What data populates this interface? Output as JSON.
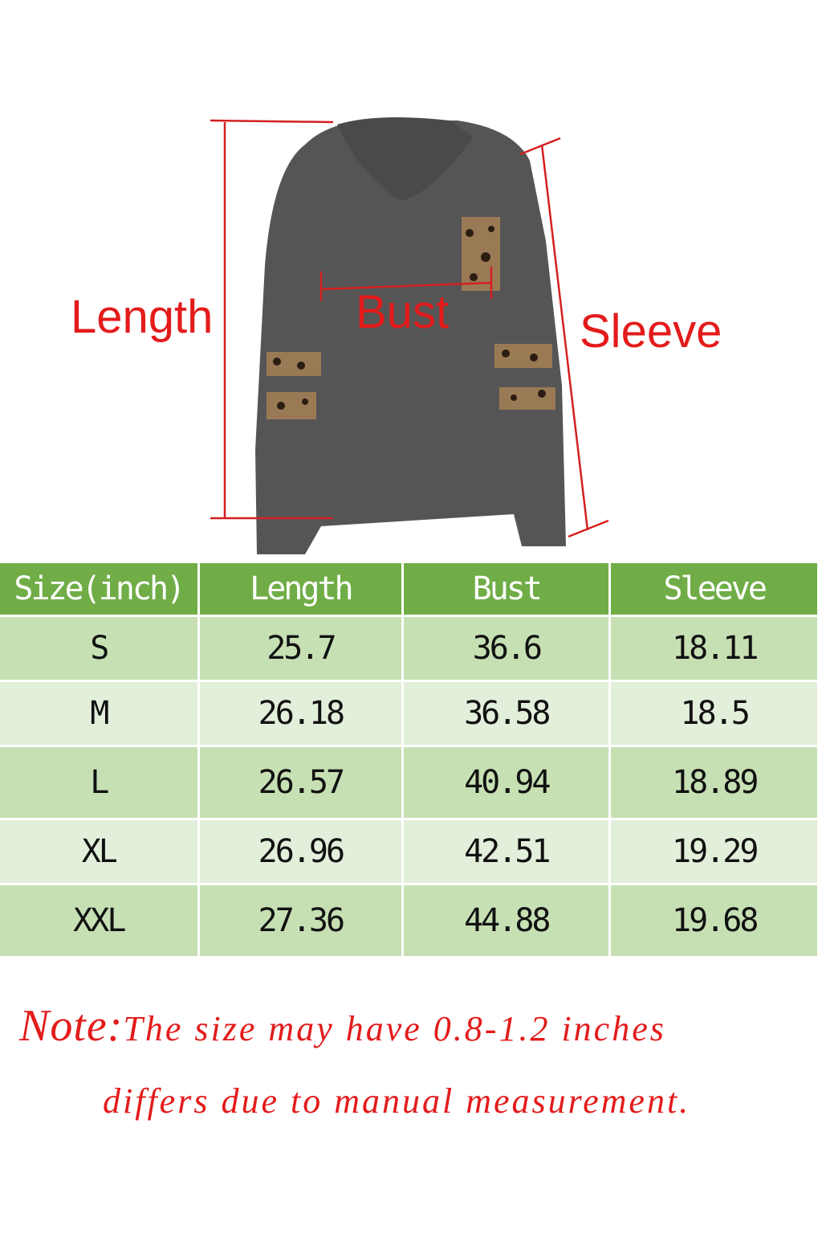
{
  "diagram": {
    "labels": {
      "length": "Length",
      "bust": "Bust",
      "sleeve": "Sleeve"
    },
    "colors": {
      "garment": "#555555",
      "measure_line": "#d42020",
      "label": "#e31b1b"
    }
  },
  "table": {
    "headers": [
      "Size(inch)",
      "Length",
      "Bust",
      "Sleeve"
    ],
    "rows": [
      [
        "S",
        "25.7",
        "36.6",
        "18.11"
      ],
      [
        "M",
        "26.18",
        "36.58",
        "18.5"
      ],
      [
        "L",
        "26.57",
        "40.94",
        "18.89"
      ],
      [
        "XL",
        "26.96",
        "42.51",
        "19.29"
      ],
      [
        "XXL",
        "27.36",
        "44.88",
        "19.68"
      ]
    ],
    "colors": {
      "header": "#70ad47",
      "row_odd": "#c6e0b4",
      "row_even": "#e2efda"
    }
  },
  "note": {
    "lead": "Note:",
    "line1": "The size may have 0.8-1.2 inches",
    "line2": "differs due to manual measurement."
  }
}
